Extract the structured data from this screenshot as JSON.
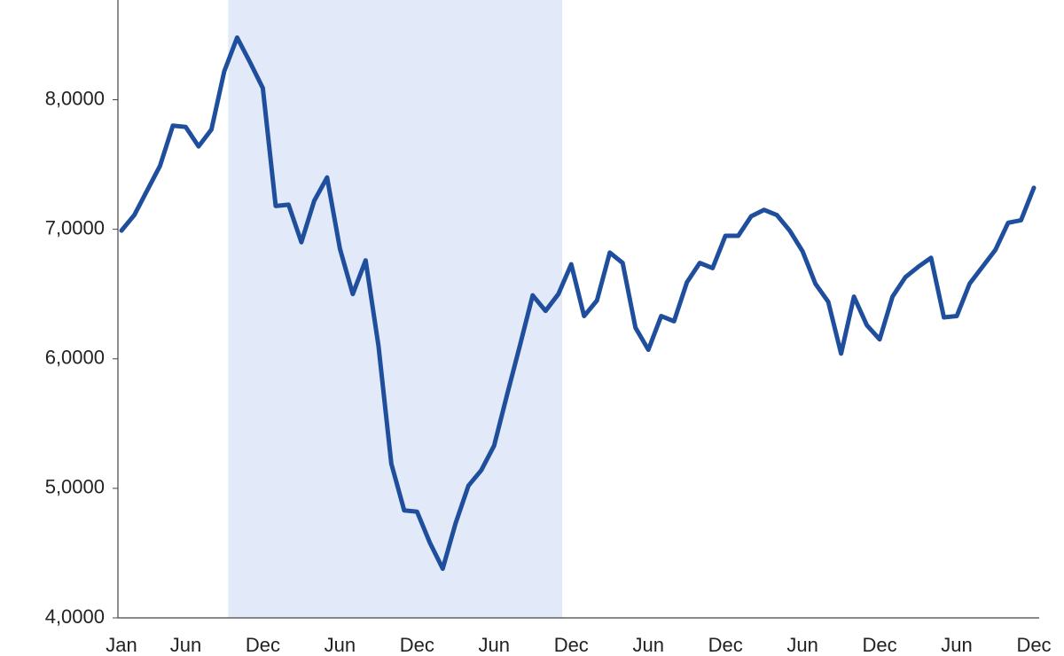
{
  "chart_data": {
    "type": "line",
    "categories": [
      "Jan",
      null,
      null,
      null,
      null,
      "Jun",
      null,
      null,
      null,
      null,
      null,
      "Dec",
      null,
      null,
      null,
      null,
      null,
      "Jun",
      null,
      null,
      null,
      null,
      null,
      "Dec",
      null,
      null,
      null,
      null,
      null,
      "Jun",
      null,
      null,
      null,
      null,
      null,
      "Dec",
      null,
      null,
      null,
      null,
      null,
      "Jun",
      null,
      null,
      null,
      null,
      null,
      "Dec",
      null,
      null,
      null,
      null,
      null,
      "Jun",
      null,
      null,
      null,
      null,
      null,
      "Dec",
      null,
      null,
      null,
      null,
      null,
      "Jun",
      null,
      null,
      null,
      null,
      null,
      "Dec"
    ],
    "values": [
      6.99,
      7.11,
      7.3,
      7.49,
      7.8,
      7.79,
      7.64,
      7.77,
      8.22,
      8.48,
      8.29,
      8.09,
      7.18,
      7.19,
      6.9,
      7.22,
      7.4,
      6.85,
      6.5,
      6.76,
      6.1,
      5.19,
      4.83,
      4.82,
      4.58,
      4.38,
      4.73,
      5.02,
      5.14,
      5.33,
      5.72,
      6.1,
      6.49,
      6.37,
      6.5,
      6.73,
      6.33,
      6.45,
      6.82,
      6.74,
      6.24,
      6.07,
      6.33,
      6.29,
      6.59,
      6.74,
      6.7,
      6.95,
      6.95,
      7.1,
      7.15,
      7.11,
      6.99,
      6.83,
      6.58,
      6.44,
      6.04,
      6.48,
      6.26,
      6.15,
      6.48,
      6.63,
      6.71,
      6.78,
      6.32,
      6.33,
      6.58,
      6.71,
      6.84,
      7.05,
      7.07,
      7.32
    ],
    "color": "#1f4e9c",
    "shaded_range": [
      8.3,
      34.3
    ],
    "shade_color": "#e2e9f8",
    "ylim": [
      4,
      8.77
    ],
    "yticks": [
      {
        "value": 4,
        "label": "4,0000"
      },
      {
        "value": 5,
        "label": "5,0000"
      },
      {
        "value": 6,
        "label": "6,0000"
      },
      {
        "value": 7,
        "label": "7,0000"
      },
      {
        "value": 8,
        "label": "8,0000"
      }
    ],
    "grid": false
  }
}
